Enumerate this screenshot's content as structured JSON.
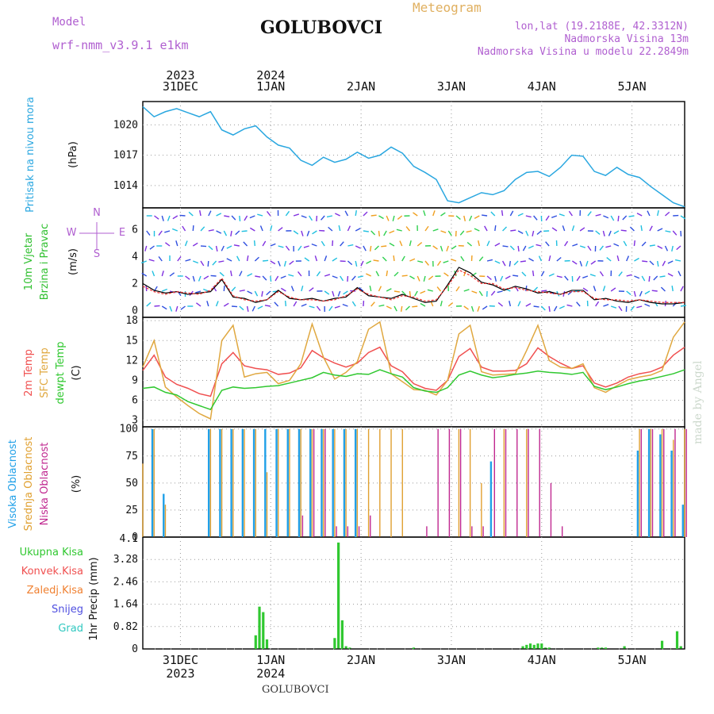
{
  "header": {
    "model_label": "Model",
    "model_name": "wrf-nmm_v3.9.1 e1km",
    "title": "GOLUBOVCI",
    "meteogram_label": "Meteogram",
    "lonlat": "lon,lat (19.2188E, 42.3312N)",
    "altitude": "Nadmorska Visina 13m",
    "model_altitude": "Nadmorska Visina u modelu 22.2849m"
  },
  "footer": {
    "station": "GOLUBOVCI",
    "credit": "made by Angel"
  },
  "colors": {
    "pressure": "#2aa7e0",
    "temp2m": "#f05050",
    "sfc": "#e0a840",
    "dewpt": "#30c830",
    "high_cloud": "#20a0e8",
    "mid_cloud": "#e0a030",
    "low_cloud": "#c02890",
    "total_precip": "#30c830",
    "conv_precip": "#f05050",
    "frozen": "#f08030",
    "snow": "#5050e0",
    "grad": "#30c8c0"
  },
  "dates_top": [
    {
      "day": "31DEC",
      "year": "2023"
    },
    {
      "day": "1JAN",
      "year": "2024"
    },
    {
      "day": "2JAN",
      "year": ""
    },
    {
      "day": "3JAN",
      "year": ""
    },
    {
      "day": "4JAN",
      "year": ""
    },
    {
      "day": "5JAN",
      "year": ""
    }
  ],
  "dates_bottom": [
    {
      "day": "31DEC",
      "year": "2023"
    },
    {
      "day": "1JAN",
      "year": "2024"
    },
    {
      "day": "2JAN",
      "year": ""
    },
    {
      "day": "3JAN",
      "year": ""
    },
    {
      "day": "4JAN",
      "year": ""
    },
    {
      "day": "5JAN",
      "year": ""
    }
  ],
  "chart_data": [
    {
      "type": "line",
      "ylabel": "Pritisak na nivou mora",
      "unit": "(hPa)",
      "yticks": [
        1014,
        1017,
        1020
      ],
      "ylim": [
        1011.8,
        1022.3
      ],
      "x_hours": [
        0,
        3,
        6,
        9,
        12,
        15,
        18,
        21,
        24,
        27,
        30,
        33,
        36,
        39,
        42,
        45,
        48,
        51,
        54,
        57,
        60,
        63,
        66,
        69,
        72,
        75,
        78,
        81,
        84,
        87,
        90,
        93,
        96,
        99,
        102,
        105,
        108,
        111,
        114,
        117,
        120,
        123,
        126,
        129,
        132,
        135,
        138,
        141,
        144
      ],
      "values": [
        1021.8,
        1020.8,
        1021.3,
        1021.6,
        1021.2,
        1020.8,
        1021.3,
        1019.5,
        1019.0,
        1019.6,
        1019.9,
        1018.8,
        1018.0,
        1017.7,
        1016.5,
        1016.0,
        1016.8,
        1016.3,
        1016.6,
        1017.3,
        1016.7,
        1017.0,
        1017.8,
        1017.2,
        1015.9,
        1015.3,
        1014.6,
        1012.5,
        1012.3,
        1012.8,
        1013.3,
        1013.1,
        1013.5,
        1014.6,
        1015.3,
        1015.4,
        1014.9,
        1015.8,
        1017.0,
        1016.9,
        1015.4,
        1015.0,
        1015.8,
        1015.1,
        1014.8,
        1013.9,
        1013.1,
        1012.3,
        1011.9
      ]
    },
    {
      "type": "line",
      "ylabel": "10m Vjetar Brzina i Pravac",
      "unit": "(m/s)",
      "yticks": [
        0,
        2,
        4,
        6
      ],
      "ylim": [
        -0.5,
        7.6
      ],
      "series": [
        {
          "name": "speed",
          "values": [
            2.0,
            1.5,
            1.3,
            1.4,
            1.2,
            1.3,
            1.4,
            2.3,
            1.0,
            0.9,
            0.6,
            0.8,
            1.5,
            0.9,
            0.8,
            0.9,
            0.7,
            0.9,
            1.0,
            1.7,
            1.1,
            1.0,
            0.9,
            1.2,
            0.9,
            0.6,
            0.7,
            1.9,
            3.2,
            2.8,
            2.1,
            1.9,
            1.5,
            1.8,
            1.6,
            1.3,
            1.4,
            1.2,
            1.5,
            1.5,
            0.8,
            0.9,
            0.7,
            0.6,
            0.8,
            0.6,
            0.5,
            0.5,
            0.6
          ]
        },
        {
          "name": "gust",
          "values": [
            1.8,
            1.4,
            1.2,
            1.4,
            1.3,
            1.2,
            1.5,
            2.4,
            1.1,
            0.8,
            0.7,
            0.8,
            1.4,
            1.0,
            0.8,
            0.8,
            0.7,
            0.8,
            1.1,
            1.6,
            1.2,
            1.0,
            0.8,
            1.1,
            1.0,
            0.7,
            0.8,
            1.8,
            3.0,
            2.6,
            2.0,
            2.0,
            1.6,
            1.7,
            1.5,
            1.4,
            1.3,
            1.2,
            1.4,
            1.4,
            0.9,
            0.8,
            0.8,
            0.7,
            0.8,
            0.7,
            0.6,
            0.6,
            0.6
          ]
        }
      ],
      "compass": [
        "N",
        "S",
        "W",
        "E"
      ]
    },
    {
      "type": "line",
      "ylabel": "2m Temp SFC Temp dewpt Temp",
      "unit": "(C)",
      "yticks": [
        3,
        6,
        9,
        12,
        15,
        18
      ],
      "ylim": [
        2.0,
        18.5
      ],
      "series": [
        {
          "name": "2m Temp",
          "values": [
            10.5,
            12.8,
            9.5,
            8.4,
            7.8,
            7.0,
            6.6,
            11.5,
            13.2,
            11.2,
            10.8,
            10.6,
            9.9,
            10.1,
            10.9,
            13.5,
            12.4,
            11.6,
            11.0,
            11.6,
            13.2,
            14.0,
            11.2,
            10.3,
            8.5,
            7.8,
            7.5,
            9.0,
            12.6,
            13.8,
            11.0,
            10.4,
            10.4,
            10.5,
            11.5,
            13.9,
            12.6,
            11.6,
            10.8,
            11.2,
            8.6,
            8.0,
            8.6,
            9.5,
            10.0,
            10.3,
            11.0,
            12.8,
            14.0
          ]
        },
        {
          "name": "SFC Temp",
          "values": [
            11.0,
            15.0,
            8.0,
            6.5,
            5.2,
            4.0,
            3.2,
            15.0,
            17.3,
            9.5,
            10.0,
            10.2,
            8.5,
            9.0,
            11.5,
            17.5,
            12.5,
            9.2,
            10.2,
            11.8,
            16.7,
            17.8,
            10.0,
            8.8,
            7.6,
            7.5,
            6.8,
            9.0,
            16.0,
            17.3,
            10.3,
            9.8,
            9.9,
            10.0,
            13.5,
            17.3,
            12.0,
            11.0,
            10.8,
            11.5,
            7.9,
            7.2,
            8.2,
            9.1,
            9.5,
            9.8,
            10.5,
            15.5,
            17.8
          ]
        },
        {
          "name": "dewpt Temp",
          "values": [
            7.8,
            8.0,
            7.2,
            6.8,
            5.8,
            5.2,
            4.6,
            7.5,
            8.0,
            7.8,
            7.9,
            8.1,
            8.2,
            8.6,
            9.0,
            9.4,
            10.2,
            9.8,
            9.6,
            10.0,
            9.9,
            10.6,
            10.0,
            9.5,
            7.9,
            7.4,
            7.2,
            7.9,
            9.8,
            10.4,
            9.8,
            9.4,
            9.6,
            9.9,
            10.1,
            10.4,
            10.2,
            10.1,
            9.9,
            10.2,
            8.1,
            7.6,
            8.0,
            8.5,
            8.9,
            9.2,
            9.6,
            10.0,
            10.6
          ]
        }
      ]
    },
    {
      "type": "bar",
      "ylabel": "Visoka Oblacnost Srednja Oblacnost Niska Oblacnost",
      "unit": "(%)",
      "yticks": [
        0,
        25,
        50,
        75,
        100
      ],
      "ylim": [
        0,
        102
      ],
      "series": [
        {
          "name": "Visoka Oblacnost",
          "values": [
            0,
            100,
            40,
            0,
            0,
            0,
            100,
            100,
            100,
            100,
            100,
            100,
            100,
            100,
            100,
            100,
            100,
            100,
            100,
            100,
            0,
            0,
            0,
            0,
            0,
            0,
            0,
            0,
            0,
            0,
            0,
            70,
            0,
            0,
            0,
            0,
            0,
            0,
            0,
            0,
            0,
            0,
            0,
            0,
            80,
            100,
            95,
            80,
            30
          ]
        },
        {
          "name": "Srednja Oblacnost",
          "values": [
            68,
            100,
            30,
            0,
            0,
            0,
            100,
            100,
            100,
            100,
            100,
            60,
            100,
            100,
            100,
            100,
            100,
            100,
            100,
            100,
            100,
            100,
            100,
            100,
            0,
            0,
            0,
            0,
            100,
            100,
            50,
            0,
            100,
            0,
            100,
            0,
            0,
            0,
            0,
            0,
            0,
            0,
            0,
            0,
            100,
            100,
            100,
            90,
            100
          ]
        },
        {
          "name": "Niska Oblacnost",
          "values": [
            0,
            0,
            0,
            0,
            0,
            0,
            0,
            0,
            0,
            0,
            0,
            0,
            0,
            0,
            20,
            100,
            100,
            10,
            10,
            10,
            20,
            0,
            0,
            0,
            0,
            10,
            100,
            100,
            100,
            10,
            10,
            100,
            100,
            100,
            100,
            100,
            50,
            10,
            0,
            0,
            0,
            0,
            0,
            0,
            100,
            100,
            100,
            100,
            100
          ]
        }
      ]
    },
    {
      "type": "bar",
      "ylabel": "1hr Precip",
      "unit": "(mm)",
      "yticks": [
        0,
        0.82,
        1.64,
        2.46,
        3.28
      ],
      "ytick_labels": [
        "0",
        "0.82",
        "1.64",
        "2.46",
        "3.28"
      ],
      "ymax_label": "4.1",
      "ylim": [
        0,
        4.1
      ],
      "legend": [
        "Ukupna Kisa",
        "Konvek.Kisa",
        "Zaledj.Kisa",
        "Snijeg",
        "Grad"
      ],
      "x_hours": [
        30,
        31,
        32,
        33,
        51,
        52,
        53,
        54,
        55,
        56,
        57,
        58,
        59,
        60,
        61,
        62,
        63,
        64,
        65,
        66,
        67,
        68,
        69,
        70,
        71,
        72,
        73,
        74,
        75,
        76,
        77,
        78,
        79,
        80,
        81,
        82,
        83,
        84,
        85,
        86,
        87,
        88,
        89,
        90,
        91,
        92,
        93,
        94,
        95,
        96,
        97,
        98,
        99,
        100,
        101,
        102,
        103,
        104,
        105,
        106,
        107,
        108,
        109,
        110,
        111,
        112,
        113,
        114,
        115,
        116,
        117,
        118,
        119,
        120,
        121,
        122,
        123,
        124,
        125,
        126,
        127,
        128,
        129,
        130,
        131,
        132,
        133,
        134,
        135,
        136,
        137,
        138,
        139,
        140,
        141,
        142,
        143,
        144
      ],
      "values": [
        0.5,
        1.55,
        1.35,
        0.35,
        0.4,
        3.9,
        1.05,
        0.1,
        0.05,
        0,
        0,
        0,
        0,
        0,
        0,
        0,
        0,
        0,
        0,
        0,
        0,
        0,
        0,
        0,
        0,
        0.05,
        0,
        0,
        0,
        0,
        0,
        0,
        0,
        0,
        0,
        0,
        0,
        0,
        0,
        0,
        0,
        0,
        0,
        0,
        0,
        0,
        0,
        0,
        0,
        0,
        0,
        0,
        0,
        0,
        0.1,
        0.15,
        0.2,
        0.15,
        0.2,
        0.2,
        0.05,
        0.05,
        0,
        0,
        0,
        0,
        0,
        0,
        0,
        0,
        0,
        0,
        0,
        0,
        0.05,
        0.05,
        0.05,
        0,
        0,
        0,
        0,
        0.1,
        0,
        0,
        0,
        0,
        0,
        0,
        0,
        0,
        0,
        0.3,
        0,
        0,
        0,
        0.65,
        0.1,
        0
      ]
    }
  ]
}
